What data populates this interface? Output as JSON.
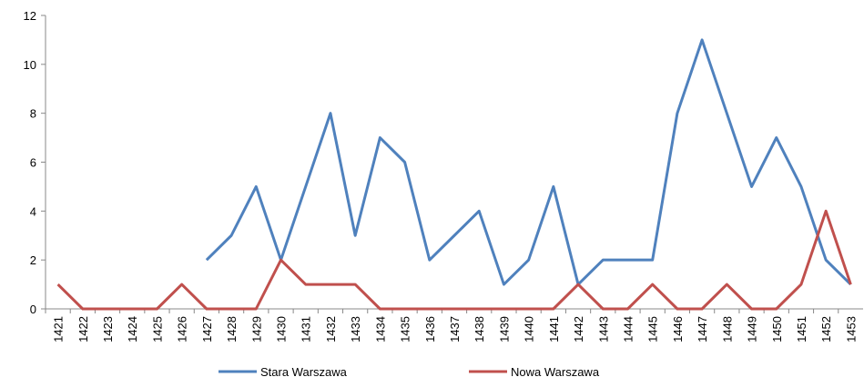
{
  "chart_data": {
    "type": "line",
    "categories": [
      "1421",
      "1422",
      "1423",
      "1424",
      "1425",
      "1426",
      "1427",
      "1428",
      "1429",
      "1430",
      "1431",
      "1432",
      "1433",
      "1434",
      "1435",
      "1436",
      "1437",
      "1438",
      "1439",
      "1440",
      "1441",
      "1442",
      "1443",
      "1444",
      "1445",
      "1446",
      "1447",
      "1448",
      "1449",
      "1450",
      "1451",
      "1452",
      "1453"
    ],
    "series": [
      {
        "name": "Stara Warszawa",
        "color": "#4f81bd",
        "values": [
          null,
          null,
          null,
          null,
          null,
          null,
          2,
          3,
          5,
          2,
          5,
          8,
          3,
          7,
          6,
          2,
          3,
          4,
          1,
          2,
          5,
          1,
          2,
          2,
          2,
          8,
          11,
          8,
          5,
          7,
          5,
          2,
          1
        ]
      },
      {
        "name": "Nowa Warszawa",
        "color": "#c0504d",
        "values": [
          1,
          0,
          0,
          0,
          0,
          1,
          0,
          0,
          0,
          2,
          1,
          1,
          1,
          0,
          0,
          0,
          0,
          0,
          0,
          0,
          0,
          1,
          0,
          0,
          1,
          0,
          0,
          1,
          0,
          0,
          1,
          4,
          1
        ]
      }
    ],
    "ylim": [
      0,
      12
    ],
    "yticks": [
      0,
      2,
      4,
      6,
      8,
      10,
      12
    ],
    "grid": false,
    "legend": "bottom"
  }
}
